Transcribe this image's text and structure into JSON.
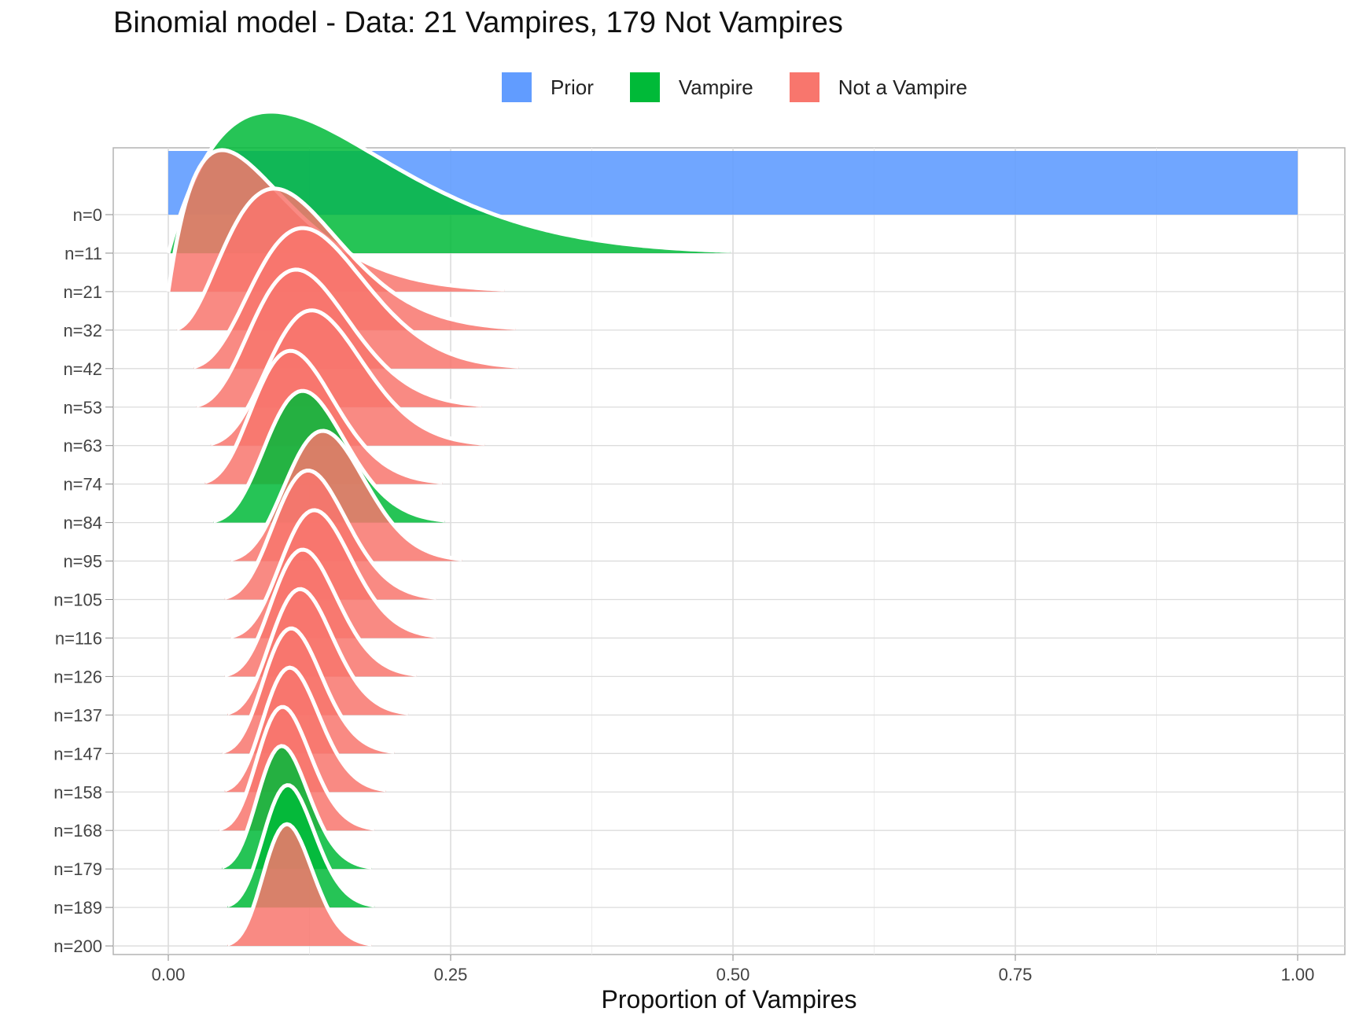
{
  "chart_data": {
    "type": "ridgeline",
    "title": "Binomial model - Data: 21 Vampires, 179 Not Vampires",
    "xlabel": "Proportion of Vampires",
    "ylabel": "",
    "xlim": [
      0,
      1
    ],
    "x_ticks": [
      "0.00",
      "0.25",
      "0.50",
      "0.75",
      "1.00"
    ],
    "x_tick_values": [
      0,
      0.25,
      0.5,
      0.75,
      1.0
    ],
    "grid": true,
    "legend_position": "top",
    "legend": [
      {
        "key": "prior",
        "label": "Prior",
        "color": "#619CFF"
      },
      {
        "key": "vampire",
        "label": "Vampire",
        "color": "#00BA38"
      },
      {
        "key": "not",
        "label": "Not a Vampire",
        "color": "#F8766D"
      }
    ],
    "rows": [
      {
        "label": "n=0",
        "n": 0,
        "vampires": 0,
        "kind": "prior"
      },
      {
        "label": "n=11",
        "n": 11,
        "vampires": 1,
        "kind": "vampire"
      },
      {
        "label": "n=21",
        "n": 21,
        "vampires": 1,
        "kind": "not"
      },
      {
        "label": "n=32",
        "n": 32,
        "vampires": 3,
        "kind": "not"
      },
      {
        "label": "n=42",
        "n": 42,
        "vampires": 5,
        "kind": "not"
      },
      {
        "label": "n=53",
        "n": 53,
        "vampires": 6,
        "kind": "not"
      },
      {
        "label": "n=63",
        "n": 63,
        "vampires": 8,
        "kind": "not"
      },
      {
        "label": "n=74",
        "n": 74,
        "vampires": 8,
        "kind": "not"
      },
      {
        "label": "n=84",
        "n": 84,
        "vampires": 10,
        "kind": "vampire"
      },
      {
        "label": "n=95",
        "n": 95,
        "vampires": 13,
        "kind": "not"
      },
      {
        "label": "n=105",
        "n": 105,
        "vampires": 13,
        "kind": "not"
      },
      {
        "label": "n=116",
        "n": 116,
        "vampires": 15,
        "kind": "not"
      },
      {
        "label": "n=126",
        "n": 126,
        "vampires": 15,
        "kind": "not"
      },
      {
        "label": "n=137",
        "n": 137,
        "vampires": 16,
        "kind": "not"
      },
      {
        "label": "n=147",
        "n": 147,
        "vampires": 16,
        "kind": "not"
      },
      {
        "label": "n=158",
        "n": 158,
        "vampires": 17,
        "kind": "not"
      },
      {
        "label": "n=168",
        "n": 168,
        "vampires": 17,
        "kind": "not"
      },
      {
        "label": "n=179",
        "n": 179,
        "vampires": 18,
        "kind": "vampire"
      },
      {
        "label": "n=189",
        "n": 189,
        "vampires": 20,
        "kind": "vampire"
      },
      {
        "label": "n=200",
        "n": 200,
        "vampires": 21,
        "kind": "not"
      }
    ]
  }
}
